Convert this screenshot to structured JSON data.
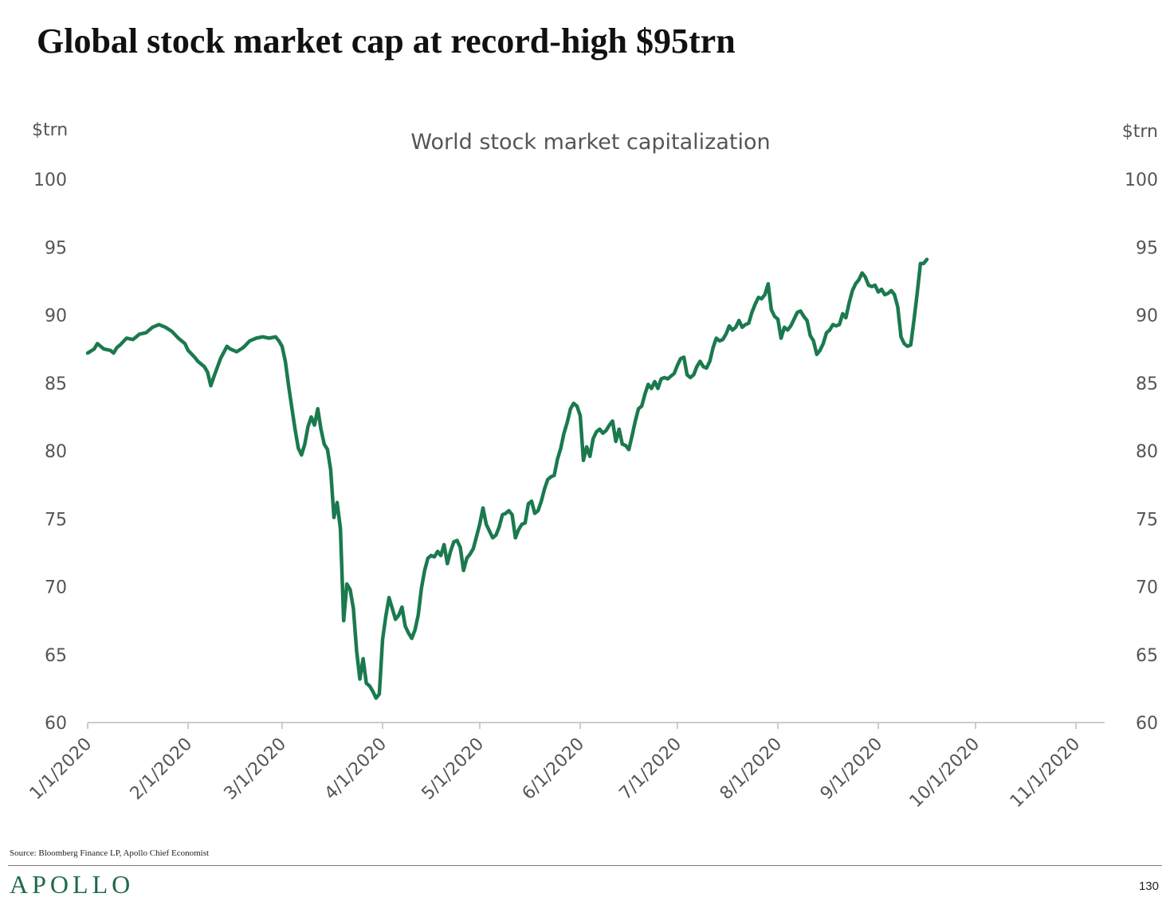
{
  "page": {
    "headline": "Global stock market cap at record-high $95trn",
    "source": "Source: Bloomberg Finance LP, Apollo Chief Economist",
    "logo": "APOLLO",
    "page_number": "130"
  },
  "colors": {
    "series": "#1a7a4e",
    "axis": "#bbbbbb",
    "logo": "#1e6b46"
  },
  "chart_data": {
    "type": "line",
    "title": "World stock market capitalization",
    "ylabel_left": "$trn",
    "ylabel_right": "$trn",
    "xlabel": "",
    "ylim": [
      60,
      100
    ],
    "yticks": [
      100,
      95,
      90,
      85,
      80,
      75,
      70,
      65,
      60
    ],
    "xlim": [
      0,
      328
    ],
    "xticks": [
      {
        "label": "1/1/2020",
        "day": 0
      },
      {
        "label": "2/1/2020",
        "day": 31
      },
      {
        "label": "3/1/2020",
        "day": 60
      },
      {
        "label": "4/1/2020",
        "day": 91
      },
      {
        "label": "5/1/2020",
        "day": 121
      },
      {
        "label": "6/1/2020",
        "day": 152
      },
      {
        "label": "7/1/2020",
        "day": 182
      },
      {
        "label": "8/1/2020",
        "day": 213
      },
      {
        "label": "9/1/2020",
        "day": 244
      },
      {
        "label": "10/1/2020",
        "day": 274
      },
      {
        "label": "11/1/2020",
        "day": 305
      }
    ],
    "series": [
      {
        "name": "World stock market capitalization",
        "points": [
          [
            0,
            87.2
          ],
          [
            2,
            87.5
          ],
          [
            3,
            87.9
          ],
          [
            5,
            87.5
          ],
          [
            7,
            87.4
          ],
          [
            8,
            87.2
          ],
          [
            9,
            87.6
          ],
          [
            10,
            87.8
          ],
          [
            12,
            88.3
          ],
          [
            14,
            88.2
          ],
          [
            16,
            88.6
          ],
          [
            18,
            88.7
          ],
          [
            20,
            89.1
          ],
          [
            22,
            89.3
          ],
          [
            24,
            89.1
          ],
          [
            26,
            88.8
          ],
          [
            28,
            88.3
          ],
          [
            30,
            87.9
          ],
          [
            31,
            87.4
          ],
          [
            33,
            86.9
          ],
          [
            34,
            86.6
          ],
          [
            36,
            86.2
          ],
          [
            37,
            85.8
          ],
          [
            38,
            84.8
          ],
          [
            39,
            85.5
          ],
          [
            41,
            86.8
          ],
          [
            43,
            87.7
          ],
          [
            44,
            87.5
          ],
          [
            46,
            87.3
          ],
          [
            48,
            87.6
          ],
          [
            50,
            88.1
          ],
          [
            52,
            88.3
          ],
          [
            54,
            88.4
          ],
          [
            56,
            88.3
          ],
          [
            58,
            88.4
          ],
          [
            59,
            88.1
          ],
          [
            60,
            87.7
          ],
          [
            61,
            86.6
          ],
          [
            62,
            84.8
          ],
          [
            63,
            83.2
          ],
          [
            64,
            81.6
          ],
          [
            65,
            80.2
          ],
          [
            66,
            79.7
          ],
          [
            67,
            80.5
          ],
          [
            68,
            81.8
          ],
          [
            69,
            82.5
          ],
          [
            70,
            81.9
          ],
          [
            71,
            83.1
          ],
          [
            72,
            81.6
          ],
          [
            73,
            80.5
          ],
          [
            74,
            80.1
          ],
          [
            75,
            78.6
          ],
          [
            76,
            75.1
          ],
          [
            77,
            76.2
          ],
          [
            78,
            74.3
          ],
          [
            79,
            67.5
          ],
          [
            80,
            70.2
          ],
          [
            81,
            69.8
          ],
          [
            82,
            68.4
          ],
          [
            83,
            65.3
          ],
          [
            84,
            63.2
          ],
          [
            85,
            64.7
          ],
          [
            86,
            62.9
          ],
          [
            87,
            62.7
          ],
          [
            88,
            62.3
          ],
          [
            89,
            61.8
          ],
          [
            90,
            62.1
          ],
          [
            91,
            66.1
          ],
          [
            92,
            67.8
          ],
          [
            93,
            69.2
          ],
          [
            94,
            68.4
          ],
          [
            95,
            67.6
          ],
          [
            96,
            67.9
          ],
          [
            97,
            68.5
          ],
          [
            98,
            67.1
          ],
          [
            99,
            66.6
          ],
          [
            100,
            66.2
          ],
          [
            101,
            66.8
          ],
          [
            102,
            67.9
          ],
          [
            103,
            69.9
          ],
          [
            104,
            71.2
          ],
          [
            105,
            72.1
          ],
          [
            106,
            72.3
          ],
          [
            107,
            72.2
          ],
          [
            108,
            72.6
          ],
          [
            109,
            72.3
          ],
          [
            110,
            73.1
          ],
          [
            111,
            71.7
          ],
          [
            112,
            72.6
          ],
          [
            113,
            73.3
          ],
          [
            114,
            73.4
          ],
          [
            115,
            72.9
          ],
          [
            116,
            71.2
          ],
          [
            117,
            72.1
          ],
          [
            118,
            72.4
          ],
          [
            119,
            72.8
          ],
          [
            120,
            73.7
          ],
          [
            121,
            74.6
          ],
          [
            122,
            75.8
          ],
          [
            123,
            74.6
          ],
          [
            124,
            74.1
          ],
          [
            125,
            73.6
          ],
          [
            126,
            73.8
          ],
          [
            127,
            74.4
          ],
          [
            128,
            75.3
          ],
          [
            129,
            75.4
          ],
          [
            130,
            75.6
          ],
          [
            131,
            75.3
          ],
          [
            132,
            73.6
          ],
          [
            133,
            74.2
          ],
          [
            134,
            74.6
          ],
          [
            135,
            74.7
          ],
          [
            136,
            76.1
          ],
          [
            137,
            76.3
          ],
          [
            138,
            75.4
          ],
          [
            139,
            75.6
          ],
          [
            140,
            76.3
          ],
          [
            141,
            77.2
          ],
          [
            142,
            77.9
          ],
          [
            143,
            78.1
          ],
          [
            144,
            78.2
          ],
          [
            145,
            79.4
          ],
          [
            146,
            80.2
          ],
          [
            147,
            81.3
          ],
          [
            148,
            82.1
          ],
          [
            149,
            83.1
          ],
          [
            150,
            83.5
          ],
          [
            151,
            83.3
          ],
          [
            152,
            82.6
          ],
          [
            153,
            79.3
          ],
          [
            154,
            80.3
          ],
          [
            155,
            79.6
          ],
          [
            156,
            80.9
          ],
          [
            157,
            81.4
          ],
          [
            158,
            81.6
          ],
          [
            159,
            81.3
          ],
          [
            160,
            81.5
          ],
          [
            161,
            81.9
          ],
          [
            162,
            82.2
          ],
          [
            163,
            80.7
          ],
          [
            164,
            81.6
          ],
          [
            165,
            80.5
          ],
          [
            166,
            80.4
          ],
          [
            167,
            80.1
          ],
          [
            168,
            81.1
          ],
          [
            169,
            82.2
          ],
          [
            170,
            83.1
          ],
          [
            171,
            83.3
          ],
          [
            172,
            84.2
          ],
          [
            173,
            84.9
          ],
          [
            174,
            84.6
          ],
          [
            175,
            85.1
          ],
          [
            176,
            84.6
          ],
          [
            177,
            85.3
          ],
          [
            178,
            85.4
          ],
          [
            179,
            85.3
          ],
          [
            180,
            85.5
          ],
          [
            181,
            85.7
          ],
          [
            182,
            86.3
          ],
          [
            183,
            86.8
          ],
          [
            184,
            86.9
          ],
          [
            185,
            85.6
          ],
          [
            186,
            85.4
          ],
          [
            187,
            85.6
          ],
          [
            188,
            86.2
          ],
          [
            189,
            86.6
          ],
          [
            190,
            86.2
          ],
          [
            191,
            86.1
          ],
          [
            192,
            86.6
          ],
          [
            193,
            87.6
          ],
          [
            194,
            88.3
          ],
          [
            195,
            88.1
          ],
          [
            196,
            88.2
          ],
          [
            197,
            88.6
          ],
          [
            198,
            89.2
          ],
          [
            199,
            88.9
          ],
          [
            200,
            89.1
          ],
          [
            201,
            89.6
          ],
          [
            202,
            89.1
          ],
          [
            203,
            89.3
          ],
          [
            204,
            89.4
          ],
          [
            205,
            90.2
          ],
          [
            206,
            90.8
          ],
          [
            207,
            91.3
          ],
          [
            208,
            91.2
          ],
          [
            209,
            91.5
          ],
          [
            210,
            92.3
          ],
          [
            211,
            90.4
          ],
          [
            212,
            89.9
          ],
          [
            213,
            89.7
          ],
          [
            214,
            88.3
          ],
          [
            215,
            89.1
          ],
          [
            216,
            88.9
          ],
          [
            217,
            89.2
          ],
          [
            218,
            89.7
          ],
          [
            219,
            90.2
          ],
          [
            220,
            90.3
          ],
          [
            221,
            89.9
          ],
          [
            222,
            89.6
          ],
          [
            223,
            88.5
          ],
          [
            224,
            88.1
          ],
          [
            225,
            87.1
          ],
          [
            226,
            87.4
          ],
          [
            227,
            87.9
          ],
          [
            228,
            88.7
          ],
          [
            229,
            88.9
          ],
          [
            230,
            89.3
          ],
          [
            231,
            89.2
          ],
          [
            232,
            89.3
          ],
          [
            233,
            90.1
          ],
          [
            234,
            89.8
          ],
          [
            235,
            90.9
          ],
          [
            236,
            91.8
          ],
          [
            237,
            92.3
          ],
          [
            238,
            92.6
          ],
          [
            239,
            93.1
          ],
          [
            240,
            92.8
          ],
          [
            241,
            92.2
          ],
          [
            242,
            92.1
          ],
          [
            243,
            92.2
          ],
          [
            244,
            91.7
          ],
          [
            245,
            91.9
          ],
          [
            246,
            91.5
          ],
          [
            247,
            91.6
          ],
          [
            248,
            91.8
          ],
          [
            249,
            91.5
          ],
          [
            250,
            90.6
          ],
          [
            251,
            88.4
          ],
          [
            252,
            87.9
          ],
          [
            253,
            87.7
          ],
          [
            254,
            87.8
          ],
          [
            255,
            89.6
          ],
          [
            256,
            91.6
          ],
          [
            257,
            93.8
          ],
          [
            258,
            93.8
          ],
          [
            259,
            94.1
          ]
        ]
      }
    ]
  }
}
